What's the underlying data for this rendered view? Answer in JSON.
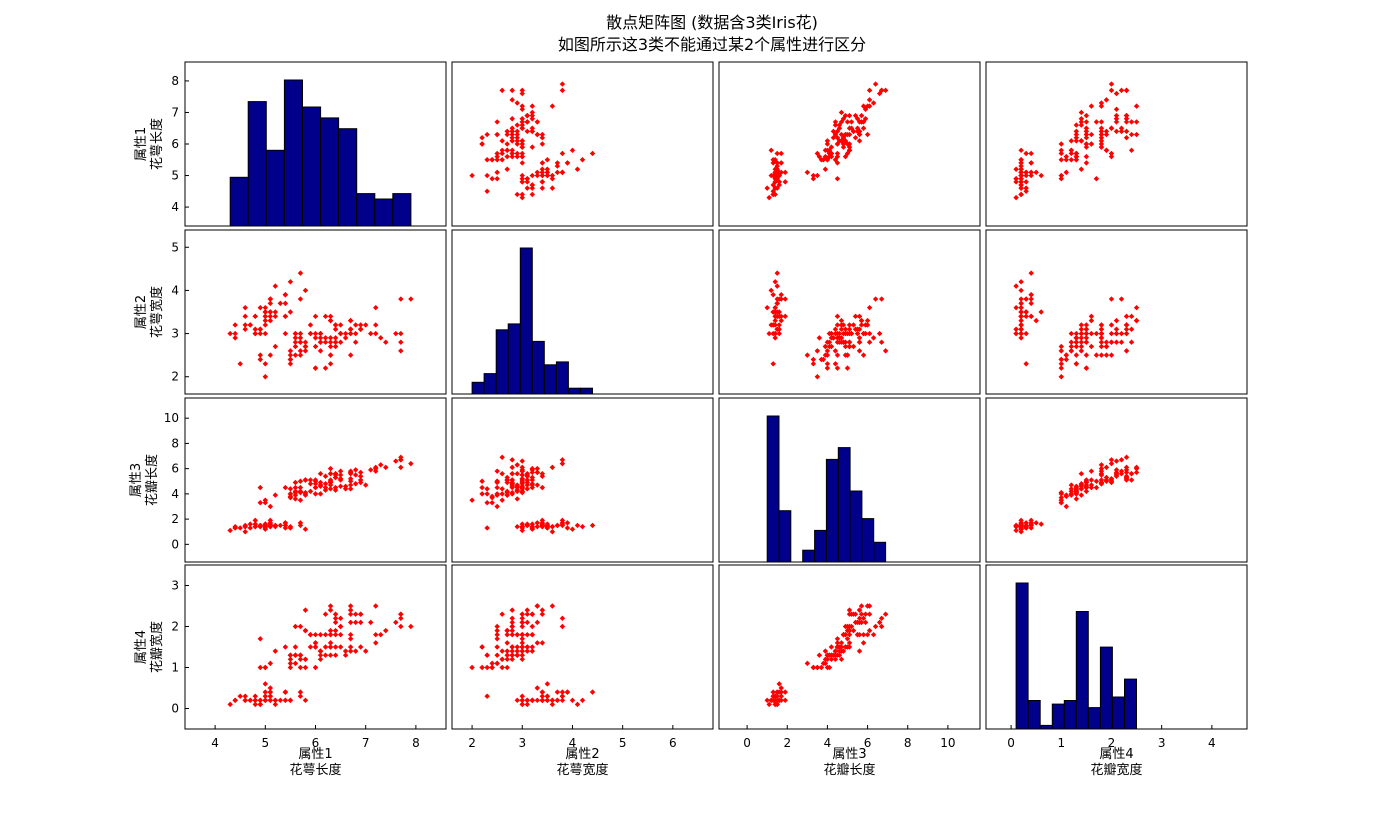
{
  "title": {
    "line1": "散点矩阵图 (数据含3类Iris花)",
    "line2": "如图所示这3类不能通过某2个属性进行区分"
  },
  "colors": {
    "hist": "#00008b",
    "point": "#ff0000",
    "axis": "#000000"
  },
  "chart_data": {
    "type": "scatter-matrix",
    "grid": false,
    "variables": [
      {
        "name": "属性1",
        "sub": "花萼长度",
        "lim": [
          3.4,
          8.6
        ],
        "ylim": [
          3.4,
          8.6
        ],
        "xticks": [
          4,
          5,
          6,
          7,
          8
        ],
        "yticks": [
          4,
          5,
          6,
          7,
          8
        ]
      },
      {
        "name": "属性2",
        "sub": "花萼宽度",
        "lim": [
          1.6,
          6.8
        ],
        "ylim": [
          1.6,
          5.4
        ],
        "xticks": [
          2,
          3,
          4,
          5,
          6
        ],
        "yticks": [
          2,
          3,
          4,
          5
        ]
      },
      {
        "name": "属性3",
        "sub": "花瓣长度",
        "lim": [
          -1.4,
          11.6
        ],
        "ylim": [
          -1.4,
          11.6
        ],
        "xticks": [
          0,
          2,
          4,
          6,
          8,
          10
        ],
        "yticks": [
          0,
          2,
          4,
          6,
          8,
          10
        ]
      },
      {
        "name": "属性4",
        "sub": "花瓣宽度",
        "lim": [
          -0.5,
          4.7
        ],
        "ylim": [
          -0.5,
          3.5
        ],
        "xticks": [
          0,
          1,
          2,
          3,
          4
        ],
        "yticks": [
          0,
          1,
          2,
          3
        ]
      }
    ],
    "histograms": [
      {
        "edges": [
          4.3,
          4.66,
          5.02,
          5.38,
          5.74,
          6.1,
          6.46,
          6.82,
          7.18,
          7.54,
          7.9
        ],
        "counts": [
          9,
          23,
          14,
          27,
          22,
          20,
          18,
          6,
          5,
          6
        ]
      },
      {
        "edges": [
          2.0,
          2.24,
          2.48,
          2.72,
          2.96,
          3.2,
          3.44,
          3.68,
          3.92,
          4.16,
          4.4
        ],
        "counts": [
          4,
          7,
          22,
          24,
          50,
          18,
          10,
          11,
          2,
          2
        ]
      },
      {
        "edges": [
          1.0,
          1.59,
          2.18,
          2.77,
          3.36,
          3.95,
          4.54,
          5.13,
          5.72,
          6.31,
          6.9
        ],
        "counts": [
          37,
          13,
          0,
          3,
          8,
          26,
          29,
          18,
          11,
          5
        ]
      },
      {
        "edges": [
          0.1,
          0.34,
          0.58,
          0.82,
          1.06,
          1.3,
          1.54,
          1.78,
          2.02,
          2.26,
          2.5
        ],
        "counts": [
          41,
          8,
          1,
          7,
          8,
          33,
          6,
          23,
          9,
          14
        ]
      }
    ],
    "iris": [
      [
        5.1,
        3.5,
        1.4,
        0.2
      ],
      [
        4.9,
        3.0,
        1.4,
        0.2
      ],
      [
        4.7,
        3.2,
        1.3,
        0.2
      ],
      [
        4.6,
        3.1,
        1.5,
        0.2
      ],
      [
        5.0,
        3.6,
        1.4,
        0.2
      ],
      [
        5.4,
        3.9,
        1.7,
        0.4
      ],
      [
        4.6,
        3.4,
        1.4,
        0.3
      ],
      [
        5.0,
        3.4,
        1.5,
        0.2
      ],
      [
        4.4,
        2.9,
        1.4,
        0.2
      ],
      [
        4.9,
        3.1,
        1.5,
        0.1
      ],
      [
        5.4,
        3.7,
        1.5,
        0.2
      ],
      [
        4.8,
        3.4,
        1.6,
        0.2
      ],
      [
        4.8,
        3.0,
        1.4,
        0.1
      ],
      [
        4.3,
        3.0,
        1.1,
        0.1
      ],
      [
        5.8,
        4.0,
        1.2,
        0.2
      ],
      [
        5.7,
        4.4,
        1.5,
        0.4
      ],
      [
        5.4,
        3.9,
        1.3,
        0.4
      ],
      [
        5.1,
        3.5,
        1.4,
        0.3
      ],
      [
        5.7,
        3.8,
        1.7,
        0.3
      ],
      [
        5.1,
        3.8,
        1.5,
        0.3
      ],
      [
        5.4,
        3.4,
        1.7,
        0.2
      ],
      [
        5.1,
        3.7,
        1.5,
        0.4
      ],
      [
        4.6,
        3.6,
        1.0,
        0.2
      ],
      [
        5.1,
        3.3,
        1.7,
        0.5
      ],
      [
        4.8,
        3.4,
        1.9,
        0.2
      ],
      [
        5.0,
        3.0,
        1.6,
        0.2
      ],
      [
        5.0,
        3.4,
        1.6,
        0.4
      ],
      [
        5.2,
        3.5,
        1.5,
        0.2
      ],
      [
        5.2,
        3.4,
        1.4,
        0.2
      ],
      [
        4.7,
        3.2,
        1.6,
        0.2
      ],
      [
        4.8,
        3.1,
        1.6,
        0.2
      ],
      [
        5.4,
        3.4,
        1.5,
        0.4
      ],
      [
        5.2,
        4.1,
        1.5,
        0.1
      ],
      [
        5.5,
        4.2,
        1.4,
        0.2
      ],
      [
        4.9,
        3.1,
        1.5,
        0.2
      ],
      [
        5.0,
        3.2,
        1.2,
        0.2
      ],
      [
        5.5,
        3.5,
        1.3,
        0.2
      ],
      [
        4.9,
        3.6,
        1.4,
        0.1
      ],
      [
        4.4,
        3.0,
        1.3,
        0.2
      ],
      [
        5.1,
        3.4,
        1.5,
        0.2
      ],
      [
        5.0,
        3.5,
        1.3,
        0.3
      ],
      [
        4.5,
        2.3,
        1.3,
        0.3
      ],
      [
        4.4,
        3.2,
        1.3,
        0.2
      ],
      [
        5.0,
        3.5,
        1.6,
        0.6
      ],
      [
        5.1,
        3.8,
        1.9,
        0.4
      ],
      [
        4.8,
        3.0,
        1.4,
        0.3
      ],
      [
        5.1,
        3.8,
        1.6,
        0.2
      ],
      [
        4.6,
        3.2,
        1.4,
        0.2
      ],
      [
        5.3,
        3.7,
        1.5,
        0.2
      ],
      [
        5.0,
        3.3,
        1.4,
        0.2
      ],
      [
        7.0,
        3.2,
        4.7,
        1.4
      ],
      [
        6.4,
        3.2,
        4.5,
        1.5
      ],
      [
        6.9,
        3.1,
        4.9,
        1.5
      ],
      [
        5.5,
        2.3,
        4.0,
        1.3
      ],
      [
        6.5,
        2.8,
        4.6,
        1.5
      ],
      [
        5.7,
        2.8,
        4.5,
        1.3
      ],
      [
        6.3,
        3.3,
        4.7,
        1.6
      ],
      [
        4.9,
        2.4,
        3.3,
        1.0
      ],
      [
        6.6,
        2.9,
        4.6,
        1.3
      ],
      [
        5.2,
        2.7,
        3.9,
        1.4
      ],
      [
        5.0,
        2.0,
        3.5,
        1.0
      ],
      [
        5.9,
        3.0,
        4.2,
        1.5
      ],
      [
        6.0,
        2.2,
        4.0,
        1.0
      ],
      [
        6.1,
        2.9,
        4.7,
        1.4
      ],
      [
        5.6,
        2.9,
        3.6,
        1.3
      ],
      [
        6.7,
        3.1,
        4.4,
        1.4
      ],
      [
        5.6,
        3.0,
        4.5,
        1.5
      ],
      [
        5.8,
        2.7,
        4.1,
        1.0
      ],
      [
        6.2,
        2.2,
        4.5,
        1.5
      ],
      [
        5.6,
        2.5,
        3.9,
        1.1
      ],
      [
        5.9,
        3.2,
        4.8,
        1.8
      ],
      [
        6.1,
        2.8,
        4.0,
        1.3
      ],
      [
        6.3,
        2.5,
        4.9,
        1.5
      ],
      [
        6.1,
        2.8,
        4.7,
        1.2
      ],
      [
        6.4,
        2.9,
        4.3,
        1.3
      ],
      [
        6.6,
        3.0,
        4.4,
        1.4
      ],
      [
        6.8,
        2.8,
        4.8,
        1.4
      ],
      [
        6.7,
        3.0,
        5.0,
        1.7
      ],
      [
        6.0,
        2.9,
        4.5,
        1.5
      ],
      [
        5.7,
        2.6,
        3.5,
        1.0
      ],
      [
        5.5,
        2.4,
        3.8,
        1.1
      ],
      [
        5.5,
        2.4,
        3.7,
        1.0
      ],
      [
        5.8,
        2.7,
        3.9,
        1.2
      ],
      [
        6.0,
        2.7,
        5.1,
        1.6
      ],
      [
        5.4,
        3.0,
        4.5,
        1.5
      ],
      [
        6.0,
        3.4,
        4.5,
        1.6
      ],
      [
        6.7,
        3.1,
        4.7,
        1.5
      ],
      [
        6.3,
        2.3,
        4.4,
        1.3
      ],
      [
        5.6,
        3.0,
        4.1,
        1.3
      ],
      [
        5.5,
        2.5,
        4.0,
        1.3
      ],
      [
        5.5,
        2.6,
        4.4,
        1.2
      ],
      [
        6.1,
        3.0,
        4.6,
        1.4
      ],
      [
        5.8,
        2.6,
        4.0,
        1.2
      ],
      [
        5.0,
        2.3,
        3.3,
        1.0
      ],
      [
        5.6,
        2.7,
        4.2,
        1.3
      ],
      [
        5.7,
        3.0,
        4.2,
        1.2
      ],
      [
        5.7,
        2.9,
        4.2,
        1.3
      ],
      [
        6.2,
        2.9,
        4.3,
        1.3
      ],
      [
        5.1,
        2.5,
        3.0,
        1.1
      ],
      [
        5.7,
        2.8,
        4.1,
        1.3
      ],
      [
        6.3,
        3.3,
        6.0,
        2.5
      ],
      [
        5.8,
        2.7,
        5.1,
        1.9
      ],
      [
        7.1,
        3.0,
        5.9,
        2.1
      ],
      [
        6.3,
        2.9,
        5.6,
        1.8
      ],
      [
        6.5,
        3.0,
        5.8,
        2.2
      ],
      [
        7.6,
        3.0,
        6.6,
        2.1
      ],
      [
        4.9,
        2.5,
        4.5,
        1.7
      ],
      [
        7.3,
        2.9,
        6.3,
        1.8
      ],
      [
        6.7,
        2.5,
        5.8,
        1.8
      ],
      [
        7.2,
        3.6,
        6.1,
        2.5
      ],
      [
        6.5,
        3.2,
        5.1,
        2.0
      ],
      [
        6.4,
        2.7,
        5.3,
        1.9
      ],
      [
        6.8,
        3.0,
        5.5,
        2.1
      ],
      [
        5.7,
        2.5,
        5.0,
        2.0
      ],
      [
        5.8,
        2.8,
        5.1,
        2.4
      ],
      [
        6.4,
        3.2,
        5.3,
        2.3
      ],
      [
        6.5,
        3.0,
        5.5,
        1.8
      ],
      [
        7.7,
        3.8,
        6.7,
        2.2
      ],
      [
        7.7,
        2.6,
        6.9,
        2.3
      ],
      [
        6.0,
        2.2,
        5.0,
        1.5
      ],
      [
        6.9,
        3.2,
        5.7,
        2.3
      ],
      [
        5.6,
        2.8,
        4.9,
        2.0
      ],
      [
        7.7,
        2.8,
        6.7,
        2.0
      ],
      [
        6.3,
        2.7,
        4.9,
        1.8
      ],
      [
        6.7,
        3.3,
        5.7,
        2.1
      ],
      [
        7.2,
        3.2,
        6.0,
        1.8
      ],
      [
        6.2,
        2.8,
        4.8,
        1.8
      ],
      [
        6.1,
        3.0,
        4.9,
        1.8
      ],
      [
        6.4,
        2.8,
        5.6,
        2.1
      ],
      [
        7.2,
        3.0,
        5.8,
        1.6
      ],
      [
        7.4,
        2.8,
        6.1,
        1.9
      ],
      [
        7.9,
        3.8,
        6.4,
        2.0
      ],
      [
        6.4,
        2.8,
        5.6,
        2.2
      ],
      [
        6.3,
        2.8,
        5.1,
        1.5
      ],
      [
        6.1,
        2.6,
        5.6,
        1.4
      ],
      [
        7.7,
        3.0,
        6.1,
        2.3
      ],
      [
        6.3,
        3.4,
        5.6,
        2.4
      ],
      [
        6.4,
        3.1,
        5.5,
        1.8
      ],
      [
        6.0,
        3.0,
        4.8,
        1.8
      ],
      [
        6.9,
        3.1,
        5.4,
        2.1
      ],
      [
        6.7,
        3.1,
        5.6,
        2.4
      ],
      [
        6.9,
        3.1,
        5.1,
        2.3
      ],
      [
        5.8,
        2.7,
        5.1,
        1.9
      ],
      [
        6.8,
        3.2,
        5.9,
        2.3
      ],
      [
        6.7,
        3.3,
        5.7,
        2.5
      ],
      [
        6.7,
        3.0,
        5.2,
        2.3
      ],
      [
        6.3,
        2.5,
        5.0,
        1.9
      ],
      [
        6.5,
        3.0,
        5.2,
        2.0
      ],
      [
        6.2,
        3.4,
        5.4,
        2.3
      ],
      [
        5.9,
        3.0,
        5.1,
        1.8
      ]
    ]
  }
}
